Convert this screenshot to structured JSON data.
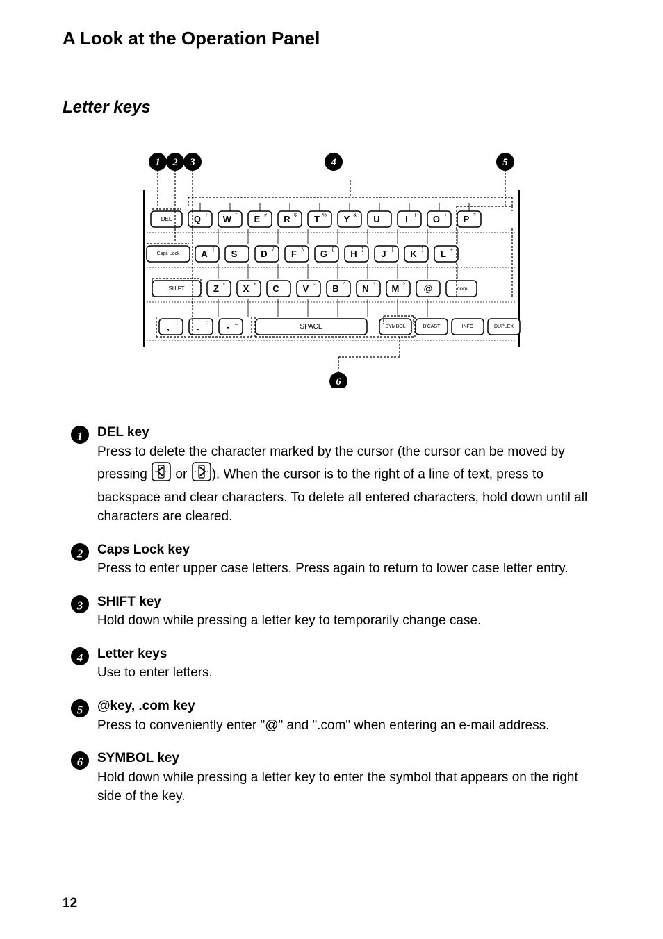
{
  "colors": {
    "text": "#000000",
    "bg": "#ffffff",
    "keyFill": "#ffffff",
    "keyStroke": "#000000"
  },
  "typography": {
    "h1_size_pt": 20,
    "h2_size_pt": 18,
    "body_size_pt": 14,
    "page_num_size_pt": 14
  },
  "page": {
    "title": "A Look at the Operation Panel",
    "subtitle": "Letter keys",
    "number": "12"
  },
  "keyboard": {
    "rows": [
      {
        "left_label": "DEL",
        "keys": [
          {
            "main": "Q",
            "sym": "!"
          },
          {
            "main": "W",
            "sym": "\""
          },
          {
            "main": "E",
            "sym": "#"
          },
          {
            "main": "R",
            "sym": "$"
          },
          {
            "main": "T",
            "sym": "%"
          },
          {
            "main": "Y",
            "sym": "&"
          },
          {
            "main": "U",
            "sym": "'"
          },
          {
            "main": "I",
            "sym": "("
          },
          {
            "main": "O",
            "sym": ")"
          },
          {
            "main": "P",
            "sym": "="
          }
        ]
      },
      {
        "left_label": "Caps Lock",
        "keys": [
          {
            "main": "A",
            "sym": "|"
          },
          {
            "main": "S",
            "sym": ""
          },
          {
            "main": "D",
            "sym": "/"
          },
          {
            "main": "F",
            "sym": "\\"
          },
          {
            "main": "G",
            "sym": "{"
          },
          {
            "main": "H",
            "sym": "}"
          },
          {
            "main": "J",
            "sym": "["
          },
          {
            "main": "K",
            "sym": "]"
          },
          {
            "main": "L",
            "sym": "+"
          }
        ]
      },
      {
        "left_label": "SHIFT",
        "keys": [
          {
            "main": "Z",
            "sym": "<"
          },
          {
            "main": "X",
            "sym": ">"
          },
          {
            "main": "C",
            "sym": ""
          },
          {
            "main": "V",
            "sym": "~"
          },
          {
            "main": "B",
            "sym": "^"
          },
          {
            "main": "N",
            "sym": "*"
          },
          {
            "main": "M",
            "sym": "?"
          }
        ],
        "extras": [
          {
            "label": "@"
          },
          {
            "label": ".com"
          }
        ]
      }
    ],
    "bottom_row": {
      "left": [
        {
          "main": ",",
          "sym": ";"
        },
        {
          "main": ".",
          "sym": ":"
        },
        {
          "main": "-",
          "sym": "_"
        }
      ],
      "space_label": "SPACE",
      "right": [
        {
          "label": "SYMBOL"
        },
        {
          "label": "B'CAST"
        },
        {
          "label": "INFO"
        },
        {
          "label": "DUPLEX"
        }
      ]
    },
    "callouts": [
      "1",
      "2",
      "3",
      "4",
      "5",
      "6"
    ]
  },
  "items": [
    {
      "num": "1",
      "title": "DEL key",
      "desc_pre": "Press to delete the character marked by the cursor (the cursor can be moved by pressing ",
      "desc_mid": " or ",
      "desc_post": "). When the cursor is to the right of a line of text, press to backspace and clear characters. To delete all entered characters, hold down until all characters are cleared."
    },
    {
      "num": "2",
      "title": "Caps Lock key",
      "desc": "Press to enter upper case letters. Press again to return to lower case letter entry."
    },
    {
      "num": "3",
      "title": "SHIFT key",
      "desc": "Hold down while pressing a letter key to temporarily change case."
    },
    {
      "num": "4",
      "title": "Letter keys",
      "desc": "Use to enter letters."
    },
    {
      "num": "5",
      "title": "@key, .com key",
      "desc": "Press to conveniently enter \"@\" and \".com\" when entering an e-mail address."
    },
    {
      "num": "6",
      "title": "SYMBOL key",
      "desc": "Hold down while pressing a letter key to enter the symbol that appears on the right side of the key."
    }
  ]
}
